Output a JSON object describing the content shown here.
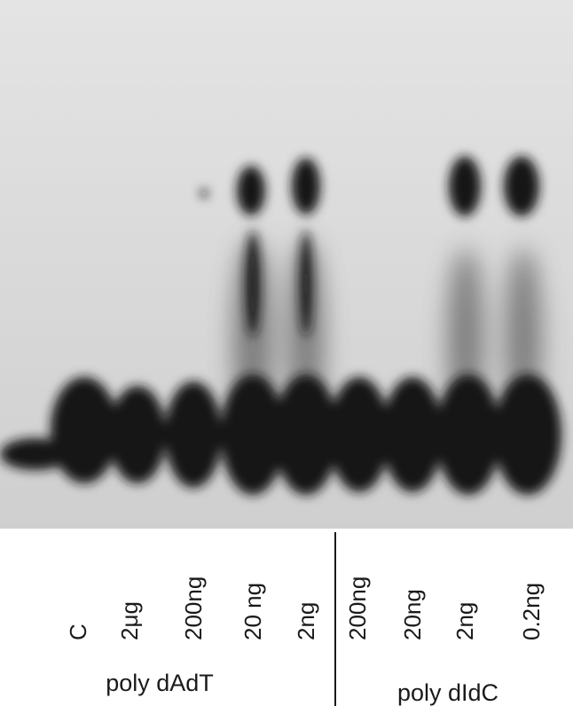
{
  "lanes": [
    {
      "label": "C"
    },
    {
      "label": "2μg"
    },
    {
      "label": "200ng"
    },
    {
      "label": "20 ng"
    },
    {
      "label": "2ng"
    },
    {
      "label": "200ng"
    },
    {
      "label": "20ng"
    },
    {
      "label": "2ng"
    },
    {
      "label": "0.2ng"
    }
  ],
  "groups": [
    {
      "label": "poly dAdT"
    },
    {
      "label": "poly dIdC"
    }
  ]
}
